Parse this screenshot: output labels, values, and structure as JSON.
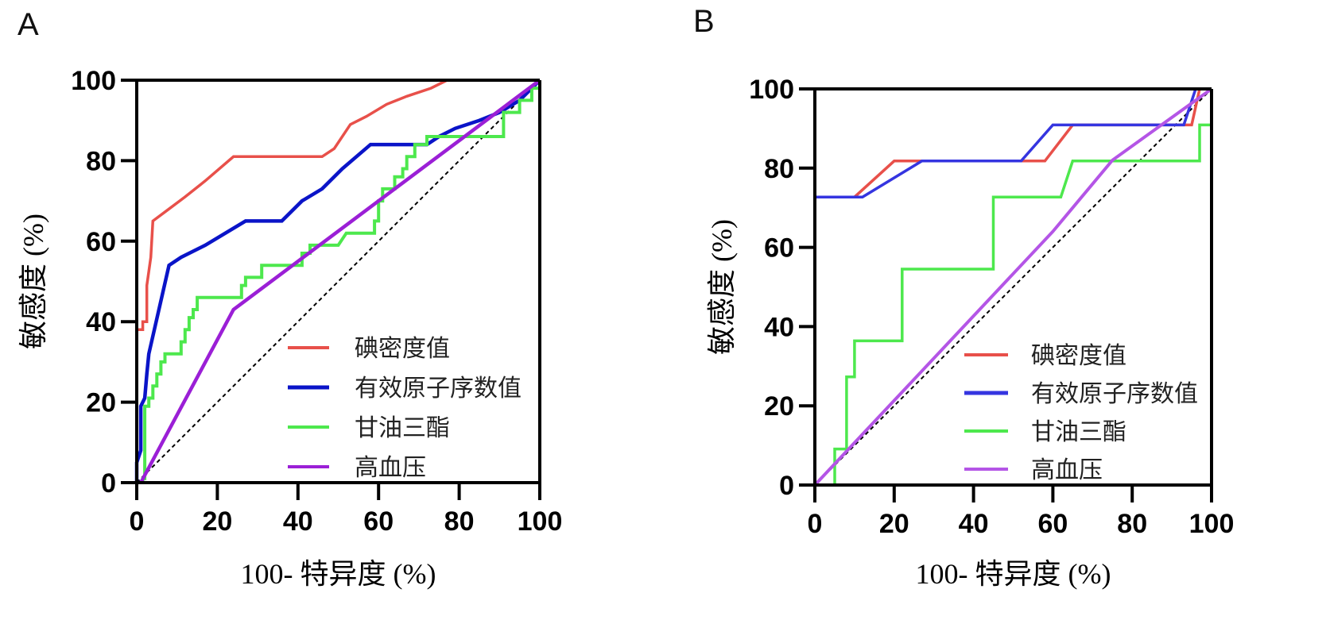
{
  "chart_data": [
    {
      "type": "line",
      "panel": "A",
      "title": "",
      "xlabel": "100- 特异度 (%)",
      "ylabel": "敏感度 (%)",
      "xlim": [
        0,
        100
      ],
      "ylim": [
        0,
        100
      ],
      "xticks": [
        0,
        20,
        40,
        60,
        80,
        100
      ],
      "yticks": [
        0,
        20,
        40,
        60,
        80,
        100
      ],
      "grid": false,
      "legend_position": "bottom-right",
      "reference_line": {
        "name": "chance",
        "style": "dashed",
        "color": "#000000",
        "points": [
          [
            0,
            0
          ],
          [
            100,
            100
          ]
        ]
      },
      "series": [
        {
          "name": "碘密度值",
          "color": "#e8504a",
          "points": [
            [
              0,
              0
            ],
            [
              0,
              38
            ],
            [
              1.5,
              38
            ],
            [
              1.5,
              40
            ],
            [
              2.5,
              40
            ],
            [
              2.5,
              49
            ],
            [
              3.5,
              56
            ],
            [
              4,
              65
            ],
            [
              8,
              68
            ],
            [
              12,
              71
            ],
            [
              17,
              75
            ],
            [
              24,
              81
            ],
            [
              46,
              81
            ],
            [
              49,
              83
            ],
            [
              53,
              89
            ],
            [
              57,
              91
            ],
            [
              62,
              94
            ],
            [
              67,
              96
            ],
            [
              73,
              98
            ],
            [
              77,
              100
            ],
            [
              100,
              100
            ]
          ]
        },
        {
          "name": "有效原子序数值",
          "color": "#0a14c8",
          "points": [
            [
              0,
              0
            ],
            [
              0,
              5
            ],
            [
              1,
              8
            ],
            [
              1,
              19
            ],
            [
              2,
              21
            ],
            [
              2.5,
              27
            ],
            [
              3,
              32
            ],
            [
              8,
              54
            ],
            [
              11,
              56
            ],
            [
              17,
              59
            ],
            [
              27,
              65
            ],
            [
              36,
              65
            ],
            [
              41,
              70
            ],
            [
              46,
              73
            ],
            [
              51,
              78
            ],
            [
              58,
              84
            ],
            [
              72,
              84
            ],
            [
              75,
              86
            ],
            [
              79,
              88
            ],
            [
              85,
              90
            ],
            [
              90,
              92
            ],
            [
              95,
              95
            ],
            [
              98,
              98
            ],
            [
              100,
              100
            ]
          ]
        },
        {
          "name": "甘油三酯",
          "color": "#4de84d",
          "points": [
            [
              0,
              0
            ],
            [
              1.5,
              0
            ],
            [
              1.5,
              1
            ],
            [
              2,
              1
            ],
            [
              2,
              19
            ],
            [
              3,
              19
            ],
            [
              3,
              21
            ],
            [
              4,
              21
            ],
            [
              4,
              24
            ],
            [
              5,
              24
            ],
            [
              5,
              27
            ],
            [
              6,
              27
            ],
            [
              6,
              30
            ],
            [
              7,
              30
            ],
            [
              7,
              32
            ],
            [
              11,
              32
            ],
            [
              11,
              35
            ],
            [
              12,
              35
            ],
            [
              12,
              38
            ],
            [
              13,
              38
            ],
            [
              13,
              41
            ],
            [
              14,
              41
            ],
            [
              14,
              43
            ],
            [
              15,
              43
            ],
            [
              15,
              46
            ],
            [
              26,
              46
            ],
            [
              26,
              49
            ],
            [
              27,
              49
            ],
            [
              27,
              51
            ],
            [
              31,
              51
            ],
            [
              31,
              54
            ],
            [
              41,
              54
            ],
            [
              41,
              57
            ],
            [
              43,
              57
            ],
            [
              43,
              59
            ],
            [
              50,
              59
            ],
            [
              52,
              62
            ],
            [
              59,
              62
            ],
            [
              59,
              65
            ],
            [
              60,
              65
            ],
            [
              60,
              70
            ],
            [
              61,
              70
            ],
            [
              61,
              73
            ],
            [
              64,
              73
            ],
            [
              64,
              76
            ],
            [
              66,
              76
            ],
            [
              66,
              78
            ],
            [
              67,
              78
            ],
            [
              67,
              81
            ],
            [
              69,
              81
            ],
            [
              69,
              84
            ],
            [
              72,
              84
            ],
            [
              72,
              86
            ],
            [
              91,
              86
            ],
            [
              91,
              92
            ],
            [
              95,
              92
            ],
            [
              95,
              95
            ],
            [
              98,
              95
            ],
            [
              98,
              98
            ],
            [
              100,
              98
            ],
            [
              100,
              100
            ]
          ]
        },
        {
          "name": "高血压",
          "color": "#9b1fd6",
          "points": [
            [
              1,
              0
            ],
            [
              24,
              43
            ],
            [
              100,
              100
            ]
          ]
        }
      ]
    },
    {
      "type": "line",
      "panel": "B",
      "title": "",
      "xlabel": "100- 特异度 (%)",
      "ylabel": "敏感度 (%)",
      "xlim": [
        0,
        100
      ],
      "ylim": [
        0,
        100
      ],
      "xticks": [
        0,
        20,
        40,
        60,
        80,
        100
      ],
      "yticks": [
        0,
        20,
        40,
        60,
        80,
        100
      ],
      "grid": false,
      "legend_position": "bottom-right",
      "reference_line": {
        "name": "chance",
        "style": "dashed",
        "color": "#000000",
        "points": [
          [
            0,
            0
          ],
          [
            100,
            100
          ]
        ]
      },
      "series": [
        {
          "name": "碘密度值",
          "color": "#e8504a",
          "points": [
            [
              0,
              0
            ],
            [
              0,
              72.7
            ],
            [
              10,
              72.7
            ],
            [
              20,
              81.8
            ],
            [
              58,
              81.8
            ],
            [
              65,
              90.9
            ],
            [
              95,
              90.9
            ],
            [
              97,
              100
            ],
            [
              100,
              100
            ]
          ]
        },
        {
          "name": "有效原子序数值",
          "color": "#3535e0",
          "points": [
            [
              0,
              0
            ],
            [
              0,
              72.7
            ],
            [
              12,
              72.7
            ],
            [
              27,
              81.8
            ],
            [
              52,
              81.8
            ],
            [
              60,
              90.9
            ],
            [
              93,
              90.9
            ],
            [
              96,
              100
            ],
            [
              100,
              100
            ]
          ]
        },
        {
          "name": "甘油三酯",
          "color": "#4de84d",
          "points": [
            [
              0,
              0
            ],
            [
              5,
              0
            ],
            [
              5,
              9.1
            ],
            [
              8,
              9.1
            ],
            [
              8,
              27.3
            ],
            [
              10,
              27.3
            ],
            [
              10,
              36.4
            ],
            [
              22,
              36.4
            ],
            [
              22,
              54.5
            ],
            [
              45,
              54.5
            ],
            [
              45,
              72.7
            ],
            [
              62,
              72.7
            ],
            [
              65,
              81.8
            ],
            [
              97,
              81.8
            ],
            [
              97,
              90.9
            ],
            [
              100,
              90.9
            ],
            [
              100,
              100
            ]
          ]
        },
        {
          "name": "高血压",
          "color": "#b455e6",
          "points": [
            [
              0,
              0
            ],
            [
              60,
              64
            ],
            [
              75,
              82
            ],
            [
              100,
              100
            ]
          ]
        }
      ]
    }
  ],
  "panels": [
    {
      "letter": "A",
      "ylabel": "敏感度 (%)",
      "xlabel": "100- 特异度 (%)"
    },
    {
      "letter": "B",
      "ylabel": "敏感度 (%)",
      "xlabel": "100- 特异度 (%)"
    }
  ]
}
